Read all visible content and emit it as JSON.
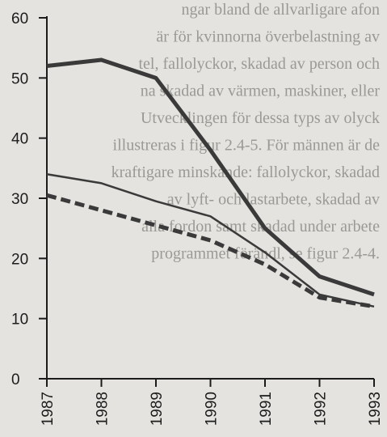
{
  "chart_data": {
    "type": "line",
    "title": "",
    "xlabel": "",
    "ylabel": "",
    "categories": [
      "1987",
      "1988",
      "1989",
      "1990",
      "1991",
      "1992",
      "1993"
    ],
    "ylim": [
      0,
      60
    ],
    "yticks": [
      0,
      10,
      20,
      30,
      40,
      50,
      60
    ],
    "grid": false,
    "legend": "none",
    "series": [
      {
        "style": "thick-solid",
        "color": "#3a3a3a",
        "values": [
          52,
          53,
          50,
          38,
          25,
          17,
          14
        ]
      },
      {
        "style": "thin-solid",
        "color": "#3a3a3a",
        "values": [
          34,
          32.5,
          29.5,
          27,
          21,
          14,
          12
        ]
      },
      {
        "style": "dashed",
        "color": "#3a3a3a",
        "values": [
          30.5,
          28,
          25.5,
          23,
          19,
          13.5,
          12
        ]
      }
    ]
  },
  "background_show_through": [
    "ngar bland de allvarligare afon",
    "är för kvinnorna överbelastning av",
    "tel, fallolyckor, skadad av person och",
    "na skadad av värmen, maskiner, eller",
    "Utvecklingen för dessa typs av olyck",
    "illustreras i figur 2.4-5. För männen är de",
    "kraftigare minskande: fallolyckor, skadad",
    "av lyft- och lastarbete, skadad av",
    "alla fordon samt skadad under arbete",
    "programmet förändl, se figur 2.4-4."
  ]
}
